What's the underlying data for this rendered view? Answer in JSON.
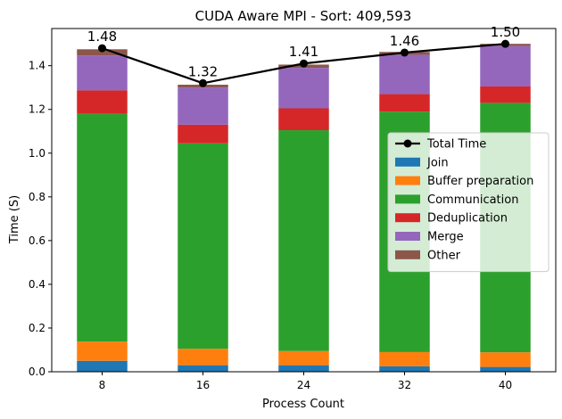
{
  "chart_data": {
    "type": "bar",
    "stacked": true,
    "title": "CUDA Aware MPI - Sort: 409,593",
    "xlabel": "Process Count",
    "ylabel": "Time (S)",
    "categories": [
      "8",
      "16",
      "24",
      "32",
      "40"
    ],
    "ylim": [
      0,
      1.57
    ],
    "yticks": [
      0.0,
      0.2,
      0.4,
      0.6,
      0.8,
      1.0,
      1.2,
      1.4
    ],
    "ytick_labels": [
      "0.0",
      "0.2",
      "0.4",
      "0.6",
      "0.8",
      "1.0",
      "1.2",
      "1.4"
    ],
    "grid": false,
    "legend_position": "center-right",
    "series": [
      {
        "name": "Join",
        "color": "#1f77b4",
        "values": [
          0.05,
          0.03,
          0.03,
          0.025,
          0.022
        ]
      },
      {
        "name": "Buffer preparation",
        "color": "#ff7f0e",
        "values": [
          0.088,
          0.075,
          0.065,
          0.065,
          0.067
        ]
      },
      {
        "name": "Communication",
        "color": "#2ca02c",
        "values": [
          1.042,
          0.94,
          1.01,
          1.1,
          1.141
        ]
      },
      {
        "name": "Deduplication",
        "color": "#d62728",
        "values": [
          0.107,
          0.085,
          0.1,
          0.08,
          0.075
        ]
      },
      {
        "name": "Merge",
        "color": "#9467bd",
        "values": [
          0.16,
          0.17,
          0.185,
          0.18,
          0.185
        ]
      },
      {
        "name": "Other",
        "color": "#8c564b",
        "values": [
          0.028,
          0.013,
          0.015,
          0.013,
          0.01
        ]
      }
    ],
    "line": {
      "name": "Total Time",
      "color": "#000000",
      "values": [
        1.48,
        1.32,
        1.41,
        1.46,
        1.5
      ],
      "labels": [
        "1.48",
        "1.32",
        "1.41",
        "1.46",
        "1.50"
      ]
    }
  }
}
